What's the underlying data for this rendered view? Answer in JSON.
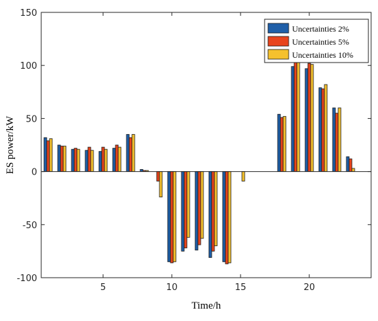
{
  "chart_data": {
    "type": "bar",
    "xlabel": "Time/h",
    "ylabel": "ES power/kW",
    "xlim": [
      0.5,
      24.5
    ],
    "ylim": [
      -100,
      150
    ],
    "x_ticks": [
      5,
      10,
      15,
      20
    ],
    "y_ticks": [
      -100,
      -50,
      0,
      50,
      100,
      150
    ],
    "grid": false,
    "legend_position": "top-right",
    "x": [
      1,
      2,
      3,
      4,
      5,
      6,
      7,
      8,
      9,
      10,
      11,
      12,
      13,
      14,
      15,
      16,
      17,
      18,
      19,
      20,
      21,
      22,
      23,
      24
    ],
    "series": [
      {
        "name": "Uncertainties 2%",
        "color": "#1f5fa8",
        "values": [
          32,
          25,
          21,
          20,
          19,
          22,
          35,
          2,
          0,
          -85,
          -75,
          -74,
          -81,
          -85,
          0,
          0,
          0,
          54,
          99,
          97,
          79,
          60,
          14,
          0
        ]
      },
      {
        "name": "Uncertainties 5%",
        "color": "#e8441c",
        "values": [
          29,
          24,
          22,
          23,
          23,
          25,
          32,
          1,
          -9,
          -86,
          -72,
          -69,
          -75,
          -87,
          0,
          0,
          0,
          51,
          105,
          102,
          78,
          55,
          12,
          0
        ]
      },
      {
        "name": "Uncertainties 10%",
        "color": "#f5c12e",
        "values": [
          31,
          24,
          21,
          20,
          21,
          23,
          35,
          1,
          -24,
          -85,
          -62,
          -63,
          -70,
          -86,
          -9,
          0,
          0,
          52,
          103,
          101,
          82,
          60,
          3,
          0
        ]
      }
    ]
  }
}
